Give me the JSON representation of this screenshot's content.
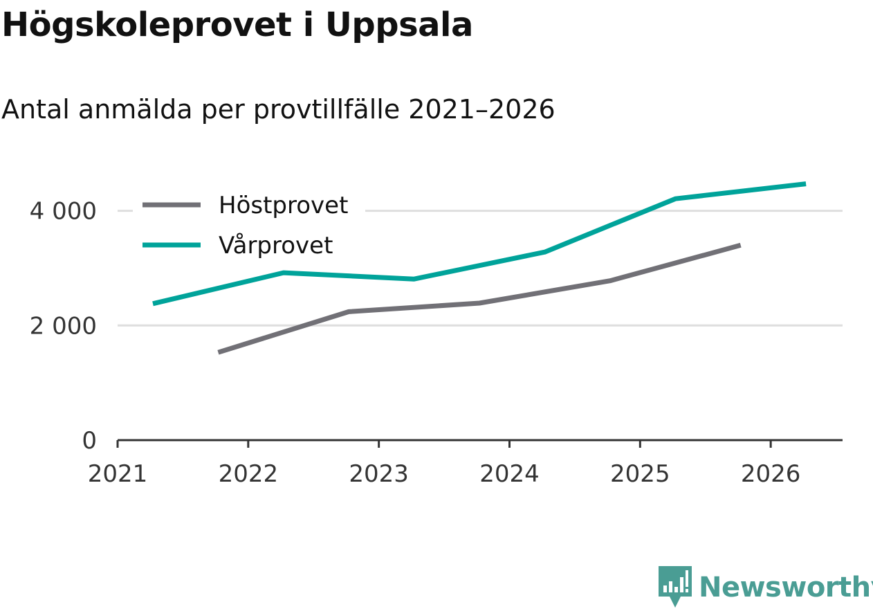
{
  "header": {
    "title": "Högskoleprovet i Uppsala",
    "subtitle": "Antal anmälda per provtillfälle 2021–2026"
  },
  "brand": {
    "name": "Newsworthy",
    "icon": "newsworthy-logo-icon",
    "color": "#4a9d94"
  },
  "chart_data": {
    "type": "line",
    "title": "Högskoleprovet i Uppsala",
    "subtitle": "Antal anmälda per provtillfälle 2021–2026",
    "xlabel": "",
    "ylabel": "",
    "xlim": [
      2021,
      2026.55
    ],
    "ylim": [
      0,
      4900
    ],
    "grid": true,
    "legend_position": "top-left",
    "x_ticks": [
      2021,
      2022,
      2023,
      2024,
      2025,
      2026
    ],
    "x_tick_labels": [
      "2021",
      "2022",
      "2023",
      "2024",
      "2025",
      "2026"
    ],
    "y_ticks": [
      0,
      2000,
      4000
    ],
    "y_tick_labels": [
      "0",
      "2 000",
      "4 000"
    ],
    "series": [
      {
        "name": "Höstprovet",
        "color": "#717076",
        "x": [
          2021.77,
          2022.77,
          2023.77,
          2024.77,
          2025.77
        ],
        "values": [
          1530,
          2240,
          2390,
          2780,
          3400
        ]
      },
      {
        "name": "Vårprovet",
        "color": "#00a39a",
        "x": [
          2021.27,
          2022.27,
          2023.27,
          2024.27,
          2025.27,
          2026.27
        ],
        "values": [
          2380,
          2920,
          2810,
          3280,
          4210,
          4470
        ]
      }
    ]
  }
}
